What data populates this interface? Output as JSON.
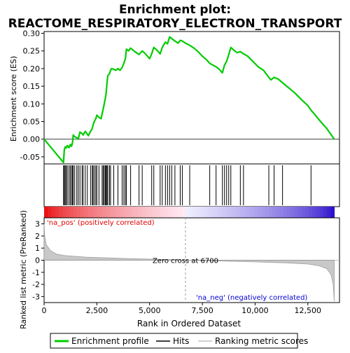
{
  "chart_data": {
    "type": "line",
    "title_lines": [
      "Enrichment plot:",
      "REACTOME_RESPIRATORY_ELECTRON_TRANSPORT"
    ],
    "top_panel": {
      "ylabel": "Enrichment score (ES)",
      "ylim": [
        -0.07,
        0.305
      ],
      "yticks": [
        -0.05,
        0.0,
        0.05,
        0.1,
        0.15,
        0.2,
        0.25,
        0.3
      ],
      "ytick_labels": [
        "-0.05",
        "0.00",
        "0.05",
        "0.10",
        "0.15",
        "0.20",
        "0.25",
        "0.30"
      ],
      "line_color": "#00cc00",
      "points": [
        [
          0,
          0.0
        ],
        [
          920,
          -0.066
        ],
        [
          960,
          -0.03
        ],
        [
          1000,
          -0.022
        ],
        [
          1050,
          -0.025
        ],
        [
          1100,
          -0.018
        ],
        [
          1180,
          -0.024
        ],
        [
          1240,
          -0.015
        ],
        [
          1300,
          -0.02
        ],
        [
          1350,
          -0.008
        ],
        [
          1380,
          0.012
        ],
        [
          1450,
          0.007
        ],
        [
          1550,
          0.004
        ],
        [
          1620,
          0.0
        ],
        [
          1700,
          0.02
        ],
        [
          1800,
          0.016
        ],
        [
          1850,
          0.012
        ],
        [
          1950,
          0.022
        ],
        [
          2050,
          0.014
        ],
        [
          2100,
          0.01
        ],
        [
          2200,
          0.022
        ],
        [
          2280,
          0.03
        ],
        [
          2320,
          0.04
        ],
        [
          2380,
          0.05
        ],
        [
          2450,
          0.058
        ],
        [
          2500,
          0.068
        ],
        [
          2600,
          0.062
        ],
        [
          2700,
          0.058
        ],
        [
          2750,
          0.072
        ],
        [
          2800,
          0.085
        ],
        [
          2850,
          0.1
        ],
        [
          2900,
          0.115
        ],
        [
          2940,
          0.13
        ],
        [
          2980,
          0.158
        ],
        [
          3020,
          0.18
        ],
        [
          3100,
          0.185
        ],
        [
          3150,
          0.195
        ],
        [
          3200,
          0.2
        ],
        [
          3300,
          0.198
        ],
        [
          3400,
          0.195
        ],
        [
          3500,
          0.2
        ],
        [
          3600,
          0.195
        ],
        [
          3700,
          0.203
        ],
        [
          3780,
          0.215
        ],
        [
          3850,
          0.228
        ],
        [
          3900,
          0.255
        ],
        [
          4000,
          0.25
        ],
        [
          4100,
          0.258
        ],
        [
          4300,
          0.248
        ],
        [
          4500,
          0.24
        ],
        [
          4650,
          0.25
        ],
        [
          4800,
          0.242
        ],
        [
          5000,
          0.228
        ],
        [
          5100,
          0.242
        ],
        [
          5200,
          0.26
        ],
        [
          5350,
          0.252
        ],
        [
          5500,
          0.242
        ],
        [
          5600,
          0.26
        ],
        [
          5750,
          0.275
        ],
        [
          5850,
          0.27
        ],
        [
          5950,
          0.29
        ],
        [
          6050,
          0.285
        ],
        [
          6200,
          0.278
        ],
        [
          6350,
          0.272
        ],
        [
          6450,
          0.28
        ],
        [
          6550,
          0.278
        ],
        [
          6700,
          0.272
        ],
        [
          6900,
          0.266
        ],
        [
          7100,
          0.258
        ],
        [
          7300,
          0.248
        ],
        [
          7500,
          0.235
        ],
        [
          7700,
          0.225
        ],
        [
          7850,
          0.215
        ],
        [
          8000,
          0.21
        ],
        [
          8150,
          0.205
        ],
        [
          8300,
          0.198
        ],
        [
          8450,
          0.188
        ],
        [
          8550,
          0.21
        ],
        [
          8650,
          0.22
        ],
        [
          8750,
          0.24
        ],
        [
          8850,
          0.26
        ],
        [
          9000,
          0.252
        ],
        [
          9150,
          0.245
        ],
        [
          9300,
          0.248
        ],
        [
          9450,
          0.242
        ],
        [
          9650,
          0.235
        ],
        [
          9900,
          0.22
        ],
        [
          10150,
          0.205
        ],
        [
          10400,
          0.195
        ],
        [
          10650,
          0.175
        ],
        [
          10750,
          0.168
        ],
        [
          10900,
          0.175
        ],
        [
          11100,
          0.17
        ],
        [
          11300,
          0.16
        ],
        [
          11600,
          0.145
        ],
        [
          11900,
          0.13
        ],
        [
          12200,
          0.112
        ],
        [
          12500,
          0.095
        ],
        [
          12650,
          0.082
        ],
        [
          12800,
          0.072
        ],
        [
          13100,
          0.05
        ],
        [
          13400,
          0.03
        ],
        [
          13750,
          0.0
        ]
      ],
      "hits": [
        920,
        960,
        1000,
        1050,
        1100,
        1180,
        1240,
        1300,
        1350,
        1380,
        1450,
        1550,
        1620,
        1700,
        1800,
        1850,
        1950,
        2050,
        2200,
        2280,
        2320,
        2380,
        2450,
        2500,
        2600,
        2750,
        2800,
        2850,
        2900,
        2940,
        2980,
        3020,
        3100,
        3150,
        3300,
        3500,
        3700,
        3780,
        3850,
        3900,
        4100,
        4500,
        4650,
        5100,
        5200,
        5500,
        5600,
        5750,
        5850,
        5950,
        6050,
        6200,
        6450,
        6550,
        6900,
        7850,
        8150,
        8450,
        8550,
        8650,
        8750,
        8850,
        9300,
        9450,
        10650,
        10900,
        11300,
        12650
      ]
    },
    "bottom_panel": {
      "ylabel": "Ranked list metric (PreRanked)",
      "xlabel": "Rank in Ordered Dataset",
      "ylim": [
        -3.5,
        3.5
      ],
      "yticks": [
        -3,
        -2,
        -1,
        0,
        1,
        2,
        3
      ],
      "ytick_labels": [
        "-3",
        "-2",
        "-1",
        "0",
        "1",
        "2",
        "3"
      ],
      "metric_curve": [
        [
          0,
          3.0
        ],
        [
          30,
          2.0
        ],
        [
          100,
          1.3
        ],
        [
          300,
          0.8
        ],
        [
          600,
          0.5
        ],
        [
          1000,
          0.38
        ],
        [
          2000,
          0.25
        ],
        [
          4000,
          0.14
        ],
        [
          6000,
          0.05
        ],
        [
          6700,
          0.0
        ],
        [
          8000,
          -0.06
        ],
        [
          10000,
          -0.14
        ],
        [
          11500,
          -0.22
        ],
        [
          12500,
          -0.32
        ],
        [
          13000,
          -0.45
        ],
        [
          13400,
          -0.7
        ],
        [
          13600,
          -1.2
        ],
        [
          13700,
          -2.0
        ],
        [
          13750,
          -3.4
        ]
      ],
      "zero_cross_label": "Zero cross at 6700",
      "zero_cross_rank": 6700,
      "pos_label": "'na_pos' (positively correlated)",
      "neg_label": "'na_neg' (negatively correlated)",
      "pos_color": "#e00000",
      "neg_color": "#0000cc"
    },
    "xlim": [
      0,
      14000
    ],
    "xticks": [
      0,
      2500,
      5000,
      7500,
      10000,
      12500
    ],
    "xtick_labels": [
      "0",
      "2,500",
      "5,000",
      "7,500",
      "10,000",
      "12,500"
    ],
    "legend": {
      "items": [
        {
          "label": "Enrichment profile",
          "color": "#00cc00"
        },
        {
          "label": "Hits",
          "color": "#000000"
        },
        {
          "label": "Ranking metric scores",
          "color": "#c0c0c0"
        }
      ]
    }
  }
}
